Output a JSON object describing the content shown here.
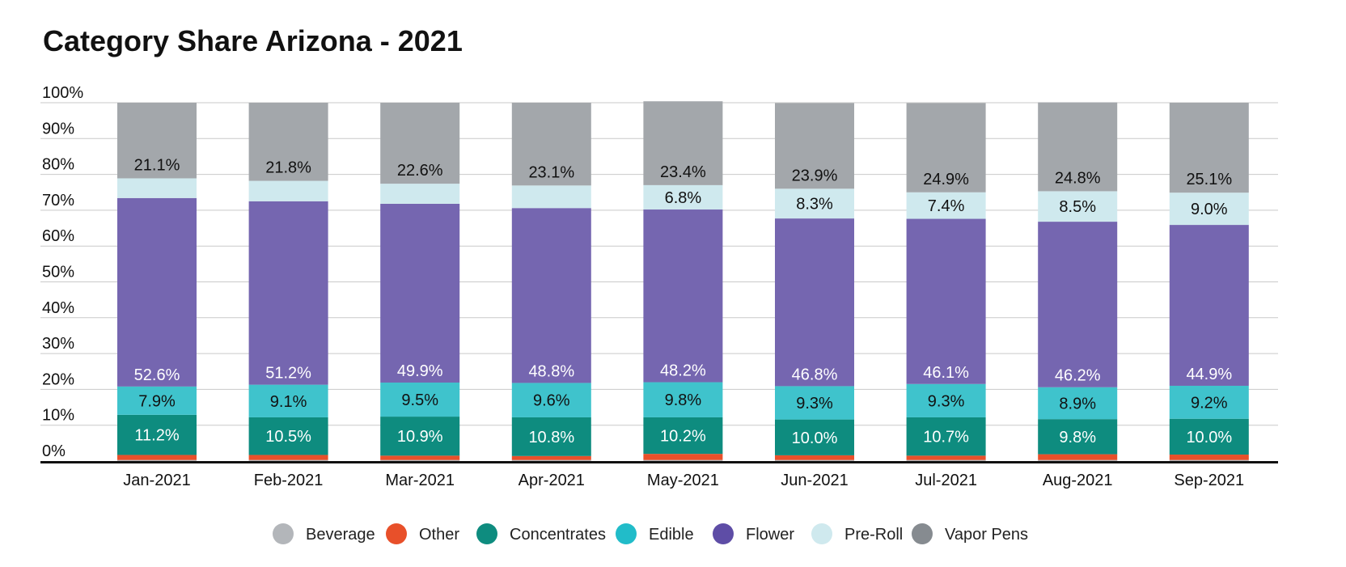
{
  "chart_data": {
    "type": "bar",
    "stacked": true,
    "title": "Category Share Arizona - 2021",
    "xlabel": "",
    "ylabel": "",
    "ylim": [
      0,
      100
    ],
    "y_ticks": [
      "0%",
      "10%",
      "20%",
      "30%",
      "40%",
      "50%",
      "60%",
      "70%",
      "80%",
      "90%",
      "100%"
    ],
    "grid": true,
    "legend_position": "bottom",
    "categories": [
      "Jan-2021",
      "Feb-2021",
      "Mar-2021",
      "Apr-2021",
      "May-2021",
      "Jun-2021",
      "Jul-2021",
      "Aug-2021",
      "Sep-2021"
    ],
    "series": [
      {
        "name": "Beverage",
        "color": "#b3b6ba",
        "values": [
          0.3,
          0.3,
          0.3,
          0.3,
          0.3,
          0.3,
          0.3,
          0.3,
          0.3
        ],
        "labels": [
          "",
          "",
          "",
          "",
          "",
          "",
          "",
          "",
          ""
        ]
      },
      {
        "name": "Other",
        "color": "#e8502a",
        "values": [
          1.4,
          1.4,
          1.2,
          1.1,
          1.7,
          1.3,
          1.2,
          1.6,
          1.5
        ],
        "labels": [
          "",
          "",
          "",
          "",
          "",
          "",
          "",
          "",
          ""
        ]
      },
      {
        "name": "Concentrates",
        "color": "#0e8c7f",
        "values": [
          11.2,
          10.5,
          10.9,
          10.8,
          10.2,
          10.0,
          10.7,
          9.8,
          10.0
        ],
        "labels": [
          "11.2%",
          "10.5%",
          "10.9%",
          "10.8%",
          "10.2%",
          "10.0%",
          "10.7%",
          "9.8%",
          "10.0%"
        ]
      },
      {
        "name": "Edible",
        "color": "#3fc3cc",
        "values": [
          7.9,
          9.1,
          9.5,
          9.6,
          9.8,
          9.3,
          9.3,
          8.9,
          9.2
        ],
        "labels": [
          "7.9%",
          "9.1%",
          "9.5%",
          "9.6%",
          "9.8%",
          "9.3%",
          "9.3%",
          "8.9%",
          "9.2%"
        ]
      },
      {
        "name": "Flower",
        "color": "#7566b0",
        "values": [
          52.6,
          51.2,
          49.9,
          48.8,
          48.2,
          46.8,
          46.1,
          46.2,
          44.9
        ],
        "labels": [
          "52.6%",
          "51.2%",
          "49.9%",
          "48.8%",
          "48.2%",
          "46.8%",
          "46.1%",
          "46.2%",
          "44.9%"
        ]
      },
      {
        "name": "Pre-Roll",
        "color": "#cfe9ee",
        "values": [
          5.5,
          5.7,
          5.6,
          6.3,
          6.8,
          8.3,
          7.4,
          8.5,
          9.0
        ],
        "labels": [
          "",
          "",
          "",
          "",
          "6.8%",
          "8.3%",
          "7.4%",
          "8.5%",
          "9.0%"
        ]
      },
      {
        "name": "Vapor Pens",
        "color": "#a3a7ab",
        "values": [
          21.1,
          21.8,
          22.6,
          23.1,
          23.4,
          23.9,
          24.9,
          24.8,
          25.1
        ],
        "labels": [
          "21.1%",
          "21.8%",
          "22.6%",
          "23.1%",
          "23.4%",
          "23.9%",
          "24.9%",
          "24.8%",
          "25.1%"
        ]
      }
    ],
    "label_colors": {
      "Concentrates": "#ffffff",
      "Edible": "#111111",
      "Flower": "#ffffff",
      "Pre-Roll": "#111111",
      "Vapor Pens": "#111111"
    },
    "legend_marker_colors": {
      "Beverage": "#b3b6ba",
      "Other": "#e8502a",
      "Concentrates": "#0e8c7f",
      "Edible": "#21bcc9",
      "Flower": "#5e4da6",
      "Pre-Roll": "#cfe9ee",
      "Vapor Pens": "#868b90"
    }
  }
}
